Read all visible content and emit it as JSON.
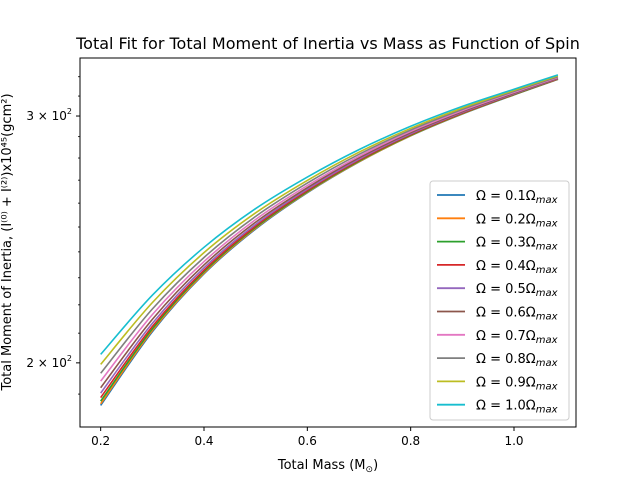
{
  "chart_data": {
    "type": "line",
    "title": "Total Fit for Total Moment of Inertia vs Mass as Function of Spin",
    "xlabel": "Total Mass (M",
    "xlabel_sub": "⊙",
    "xlabel_tail": ")",
    "ylabel": "Total Moment of Inertia, (I⁽⁰⁾ + I⁽²⁾)x10⁴⁵(gcm²)",
    "xlim": [
      0.16,
      1.12
    ],
    "ylim": [
      180,
      330
    ],
    "yscale": "log",
    "grid": false,
    "legend_position": "lower right",
    "x_ticks": [
      "0.2",
      "0.4",
      "0.6",
      "0.8",
      "1.0"
    ],
    "x_tick_values": [
      0.2,
      0.4,
      0.6,
      0.8,
      1.0
    ],
    "y_ticks": [
      {
        "value": 200,
        "base": "2 × 10",
        "exp": "2"
      },
      {
        "value": 300,
        "base": "3 × 10",
        "exp": "2"
      }
    ],
    "x": [
      0.2,
      0.3,
      0.4,
      0.5,
      0.6,
      0.7,
      0.8,
      0.9,
      1.0,
      1.085
    ],
    "series": [
      {
        "name": "Ω = 0.1Ω",
        "sub": "max",
        "color": "#1f77b4",
        "values": [
          186.5,
          210.5,
          231.5,
          249.2,
          264.5,
          278.2,
          290.4,
          301.0,
          310.6,
          318.6
        ]
      },
      {
        "name": "Ω = 0.2Ω",
        "sub": "max",
        "color": "#ff7f0e",
        "values": [
          187.0,
          210.9,
          231.8,
          249.5,
          264.7,
          278.3,
          290.5,
          301.1,
          310.7,
          318.7
        ]
      },
      {
        "name": "Ω = 0.3Ω",
        "sub": "max",
        "color": "#2ca02c",
        "values": [
          187.8,
          211.5,
          232.3,
          249.9,
          265.0,
          278.6,
          290.7,
          301.3,
          310.8,
          318.8
        ]
      },
      {
        "name": "Ω = 0.4Ω",
        "sub": "max",
        "color": "#d62728",
        "values": [
          188.9,
          212.3,
          232.9,
          250.4,
          265.4,
          279.0,
          291.0,
          301.5,
          311.0,
          318.9
        ]
      },
      {
        "name": "Ω = 0.5Ω",
        "sub": "max",
        "color": "#9467bd",
        "values": [
          190.3,
          213.4,
          233.8,
          251.1,
          266.0,
          279.5,
          291.4,
          301.8,
          311.2,
          319.1
        ]
      },
      {
        "name": "Ω = 0.6Ω",
        "sub": "max",
        "color": "#8c564b",
        "values": [
          192.0,
          214.8,
          234.9,
          252.0,
          266.7,
          280.1,
          291.9,
          302.2,
          311.5,
          319.3
        ]
      },
      {
        "name": "Ω = 0.7Ω",
        "sub": "max",
        "color": "#e377c2",
        "values": [
          194.1,
          216.5,
          236.2,
          253.1,
          267.6,
          280.8,
          292.5,
          302.7,
          311.9,
          319.6
        ]
      },
      {
        "name": "Ω = 0.8Ω",
        "sub": "max",
        "color": "#7f7f7f",
        "values": [
          196.6,
          218.5,
          237.8,
          254.4,
          268.7,
          281.7,
          293.2,
          303.3,
          312.4,
          320.0
        ]
      },
      {
        "name": "Ω = 0.9Ω",
        "sub": "max",
        "color": "#bcbd22",
        "values": [
          199.5,
          220.8,
          239.7,
          255.9,
          269.9,
          282.7,
          294.0,
          304.0,
          312.9,
          320.5
        ]
      },
      {
        "name": "Ω = 1.0Ω",
        "sub": "max",
        "color": "#17becf",
        "values": [
          202.8,
          223.5,
          241.8,
          257.7,
          271.4,
          283.9,
          295.0,
          304.8,
          313.5,
          321.0
        ]
      }
    ]
  }
}
